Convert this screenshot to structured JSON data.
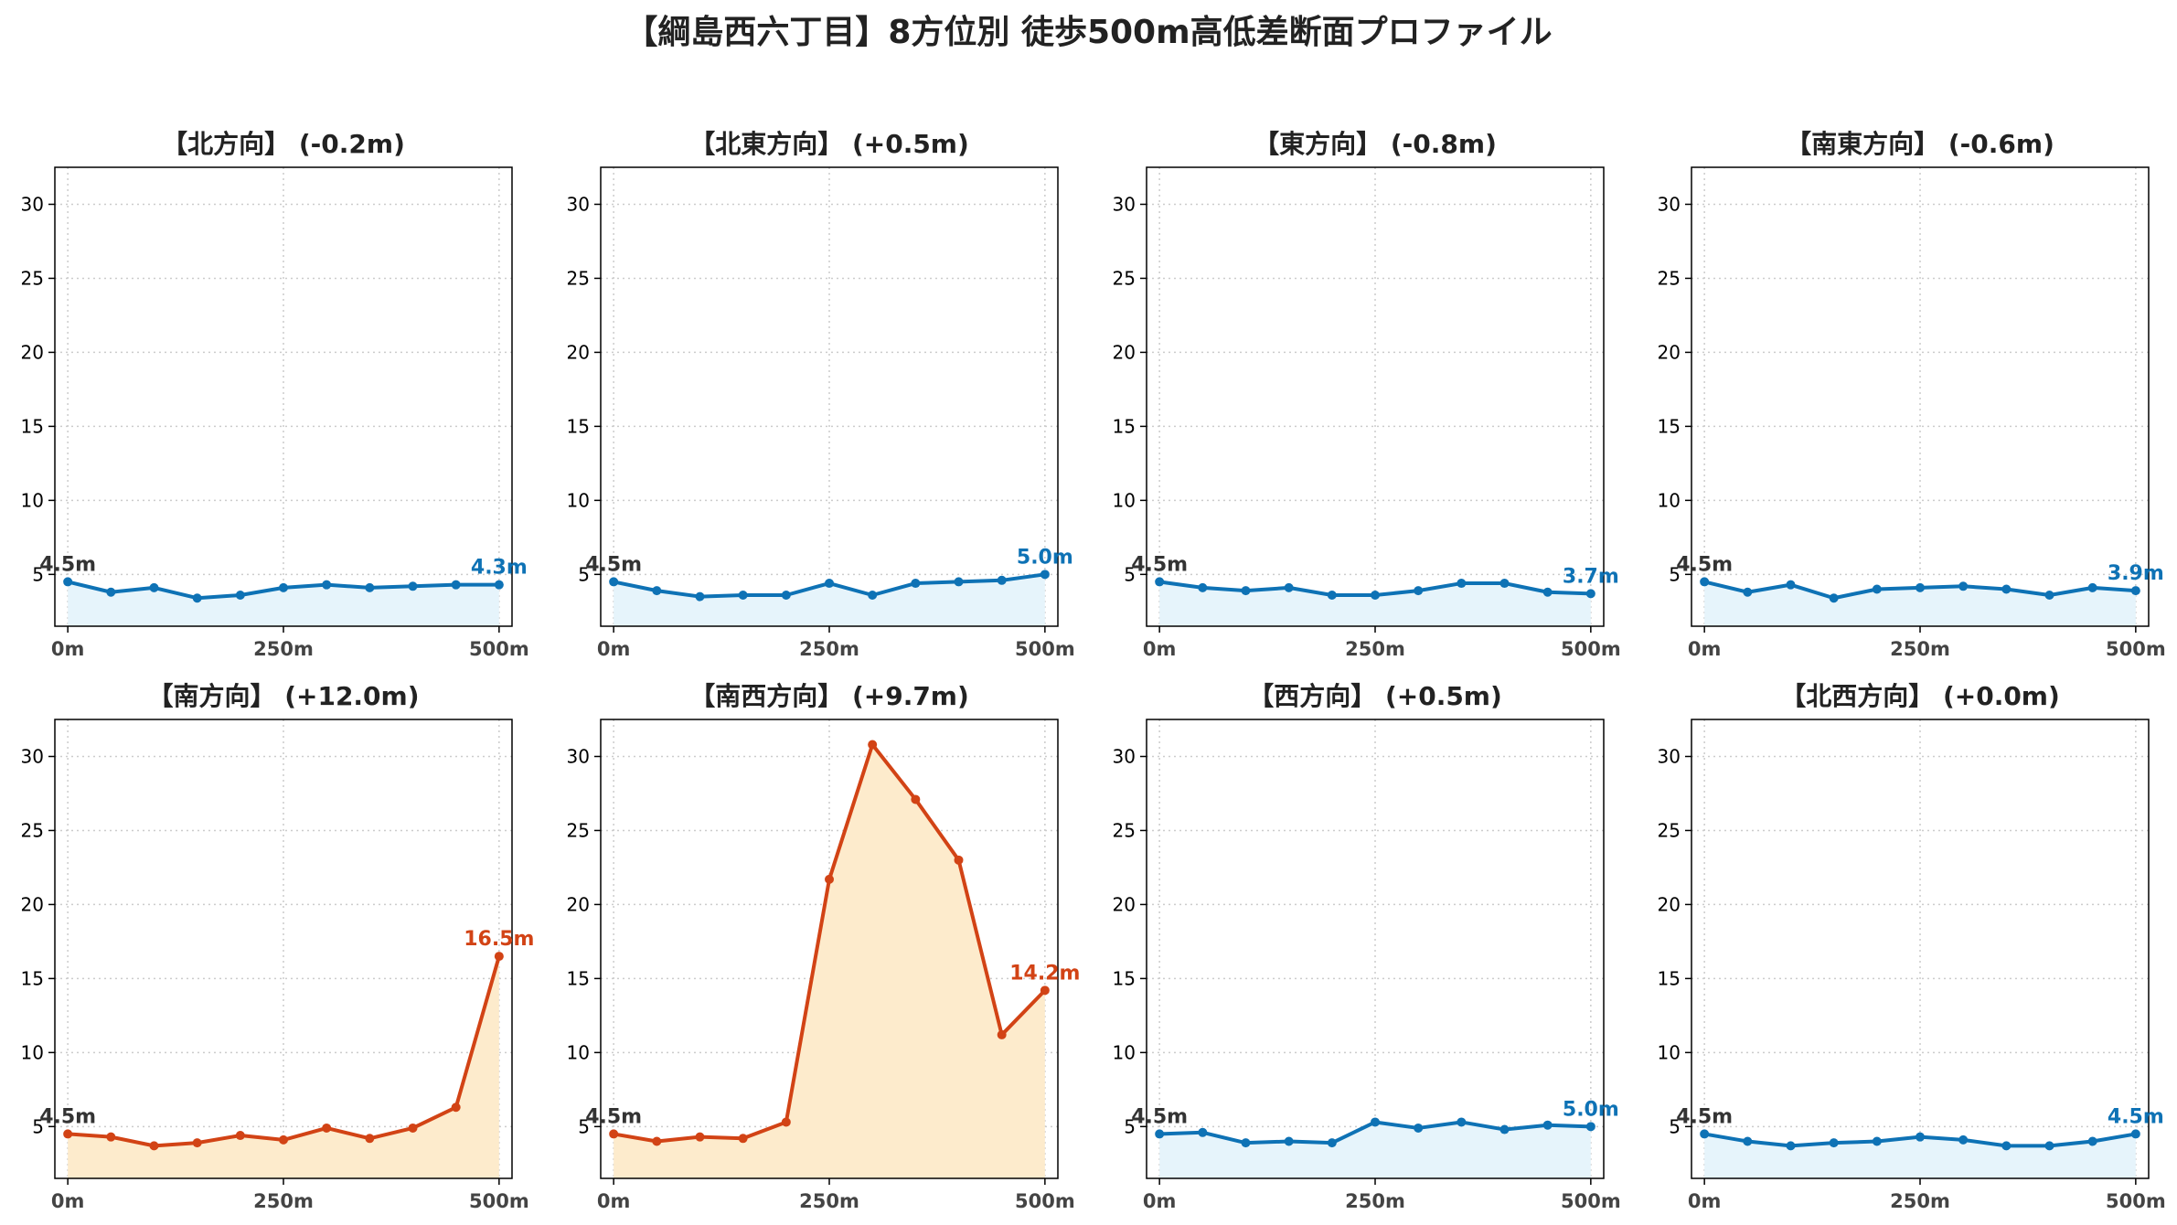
{
  "title": "【綱島西六丁目】8方位別 徒歩500m高低差断面プロファイル",
  "colors": {
    "flat_line": "#0e72b5",
    "flat_fill": "#e6f4fb",
    "steep_line": "#d24315",
    "steep_fill": "#fdebcc",
    "start_label": "#333333",
    "axis": "#000000",
    "grid": "#cccccc"
  },
  "chart_data": [
    {
      "type": "line",
      "title": "【北方向】 (-0.2m)",
      "style": "flat",
      "x": [
        0,
        50,
        100,
        150,
        200,
        250,
        300,
        350,
        400,
        450,
        500
      ],
      "y": [
        4.5,
        3.8,
        4.1,
        3.4,
        3.6,
        4.1,
        4.3,
        4.1,
        4.2,
        4.3,
        4.3
      ],
      "start_label": "4.5m",
      "end_label": "4.3m",
      "xticks": [
        "0m",
        "250m",
        "500m"
      ],
      "yticks": [
        "5",
        "10",
        "15",
        "20",
        "25",
        "30"
      ],
      "xlim": [
        -15,
        515
      ],
      "ylim": [
        1.5,
        32.5
      ],
      "grid": true
    },
    {
      "type": "line",
      "title": "【北東方向】 (+0.5m)",
      "style": "flat",
      "x": [
        0,
        50,
        100,
        150,
        200,
        250,
        300,
        350,
        400,
        450,
        500
      ],
      "y": [
        4.5,
        3.9,
        3.5,
        3.6,
        3.6,
        4.4,
        3.6,
        4.4,
        4.5,
        4.6,
        5.0
      ],
      "start_label": "4.5m",
      "end_label": "5.0m",
      "xticks": [
        "0m",
        "250m",
        "500m"
      ],
      "yticks": [
        "5",
        "10",
        "15",
        "20",
        "25",
        "30"
      ],
      "xlim": [
        -15,
        515
      ],
      "ylim": [
        1.5,
        32.5
      ],
      "grid": true
    },
    {
      "type": "line",
      "title": "【東方向】 (-0.8m)",
      "style": "flat",
      "x": [
        0,
        50,
        100,
        150,
        200,
        250,
        300,
        350,
        400,
        450,
        500
      ],
      "y": [
        4.5,
        4.1,
        3.9,
        4.1,
        3.6,
        3.6,
        3.9,
        4.4,
        4.4,
        3.8,
        3.7
      ],
      "start_label": "4.5m",
      "end_label": "3.7m",
      "xticks": [
        "0m",
        "250m",
        "500m"
      ],
      "yticks": [
        "5",
        "10",
        "15",
        "20",
        "25",
        "30"
      ],
      "xlim": [
        -15,
        515
      ],
      "ylim": [
        1.5,
        32.5
      ],
      "grid": true
    },
    {
      "type": "line",
      "title": "【南東方向】 (-0.6m)",
      "style": "flat",
      "x": [
        0,
        50,
        100,
        150,
        200,
        250,
        300,
        350,
        400,
        450,
        500
      ],
      "y": [
        4.5,
        3.8,
        4.3,
        3.4,
        4.0,
        4.1,
        4.2,
        4.0,
        3.6,
        4.1,
        3.9
      ],
      "start_label": "4.5m",
      "end_label": "3.9m",
      "xticks": [
        "0m",
        "250m",
        "500m"
      ],
      "yticks": [
        "5",
        "10",
        "15",
        "20",
        "25",
        "30"
      ],
      "xlim": [
        -15,
        515
      ],
      "ylim": [
        1.5,
        32.5
      ],
      "grid": true
    },
    {
      "type": "line",
      "title": "【南方向】 (+12.0m)",
      "style": "steep",
      "x": [
        0,
        50,
        100,
        150,
        200,
        250,
        300,
        350,
        400,
        450,
        500
      ],
      "y": [
        4.5,
        4.3,
        3.7,
        3.9,
        4.4,
        4.1,
        4.9,
        4.2,
        4.9,
        6.3,
        16.5
      ],
      "start_label": "4.5m",
      "end_label": "16.5m",
      "xticks": [
        "0m",
        "250m",
        "500m"
      ],
      "yticks": [
        "5",
        "10",
        "15",
        "20",
        "25",
        "30"
      ],
      "xlim": [
        -15,
        515
      ],
      "ylim": [
        1.5,
        32.5
      ],
      "grid": true
    },
    {
      "type": "line",
      "title": "【南西方向】 (+9.7m)",
      "style": "steep",
      "x": [
        0,
        50,
        100,
        150,
        200,
        250,
        300,
        350,
        400,
        450,
        500
      ],
      "y": [
        4.5,
        4.0,
        4.3,
        4.2,
        5.3,
        21.7,
        30.8,
        27.1,
        23.0,
        11.2,
        14.2
      ],
      "start_label": "4.5m",
      "end_label": "14.2m",
      "xticks": [
        "0m",
        "250m",
        "500m"
      ],
      "yticks": [
        "5",
        "10",
        "15",
        "20",
        "25",
        "30"
      ],
      "xlim": [
        -15,
        515
      ],
      "ylim": [
        1.5,
        32.5
      ],
      "grid": true
    },
    {
      "type": "line",
      "title": "【西方向】 (+0.5m)",
      "style": "flat",
      "x": [
        0,
        50,
        100,
        150,
        200,
        250,
        300,
        350,
        400,
        450,
        500
      ],
      "y": [
        4.5,
        4.6,
        3.9,
        4.0,
        3.9,
        5.3,
        4.9,
        5.3,
        4.8,
        5.1,
        5.0
      ],
      "start_label": "4.5m",
      "end_label": "5.0m",
      "xticks": [
        "0m",
        "250m",
        "500m"
      ],
      "yticks": [
        "5",
        "10",
        "15",
        "20",
        "25",
        "30"
      ],
      "xlim": [
        -15,
        515
      ],
      "ylim": [
        1.5,
        32.5
      ],
      "grid": true
    },
    {
      "type": "line",
      "title": "【北西方向】 (+0.0m)",
      "style": "flat",
      "x": [
        0,
        50,
        100,
        150,
        200,
        250,
        300,
        350,
        400,
        450,
        500
      ],
      "y": [
        4.5,
        4.0,
        3.7,
        3.9,
        4.0,
        4.3,
        4.1,
        3.7,
        3.7,
        4.0,
        4.5
      ],
      "start_label": "4.5m",
      "end_label": "4.5m",
      "xticks": [
        "0m",
        "250m",
        "500m"
      ],
      "yticks": [
        "5",
        "10",
        "15",
        "20",
        "25",
        "30"
      ],
      "xlim": [
        -15,
        515
      ],
      "ylim": [
        1.5,
        32.5
      ],
      "grid": true
    }
  ]
}
